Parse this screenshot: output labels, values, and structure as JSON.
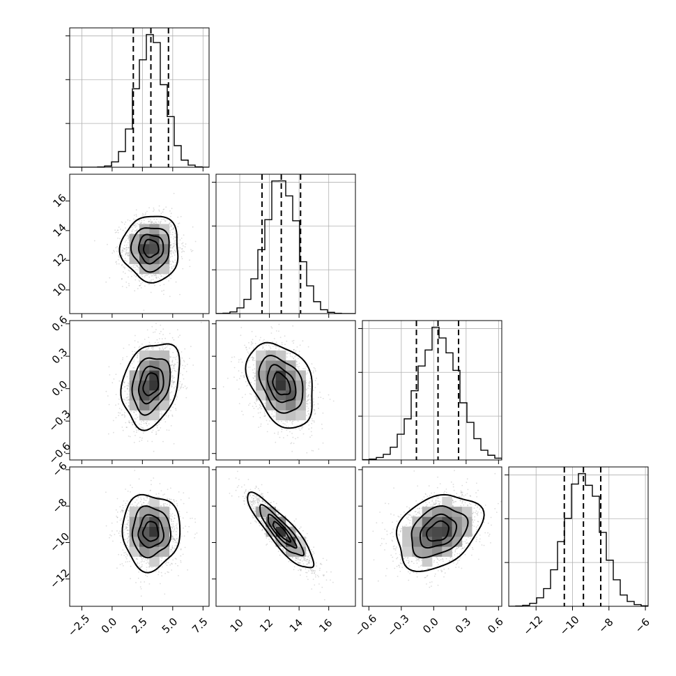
{
  "chart_data": {
    "type": "corner",
    "parameters": [
      {
        "mean": 3.2,
        "sd": 1.15,
        "lim": [
          -3.5,
          8.0
        ],
        "ticks": [
          -2.5,
          0.0,
          2.5,
          5.0,
          7.5
        ],
        "tick_labels": [
          "−2.5",
          "0.0",
          "2.5",
          "5.0",
          "7.5"
        ],
        "quantiles": [
          1.75,
          3.2,
          4.65
        ]
      },
      {
        "mean": 12.8,
        "sd": 1.08,
        "lim": [
          8.4,
          17.8
        ],
        "ticks": [
          10,
          12,
          14,
          16
        ],
        "tick_labels": [
          "10",
          "12",
          "14",
          "16"
        ],
        "quantiles": [
          11.5,
          12.8,
          14.1
        ]
      },
      {
        "mean": 0.04,
        "sd": 0.19,
        "lim": [
          -0.66,
          0.63
        ],
        "ticks": [
          -0.6,
          -0.3,
          0.0,
          0.3,
          0.6
        ],
        "tick_labels": [
          "−0.6",
          "−0.3",
          "0.0",
          "0.3",
          "0.6"
        ],
        "quantiles": [
          -0.16,
          0.04,
          0.23
        ]
      },
      {
        "mean": -9.4,
        "sd": 1.0,
        "lim": [
          -13.5,
          -5.85
        ],
        "ticks": [
          -12,
          -10,
          -8,
          -6
        ],
        "tick_labels": [
          "−12",
          "−10",
          "−8",
          "−6"
        ],
        "quantiles": [
          -10.45,
          -9.4,
          -8.45
        ]
      }
    ],
    "correlations": [
      [
        1.0,
        0.0,
        0.25,
        0.0
      ],
      [
        0.0,
        1.0,
        -0.35,
        -0.88
      ],
      [
        0.25,
        -0.35,
        1.0,
        0.3
      ],
      [
        0.0,
        -0.88,
        0.3,
        1.0
      ]
    ],
    "hist_bins": 20,
    "contour_levels_sigma": [
      0.5,
      1.0,
      1.5,
      2.0
    ],
    "grid": true,
    "colors": {
      "line": "#000000",
      "scatter": "#9a9a9a",
      "grid": "#b0b0b0"
    }
  }
}
